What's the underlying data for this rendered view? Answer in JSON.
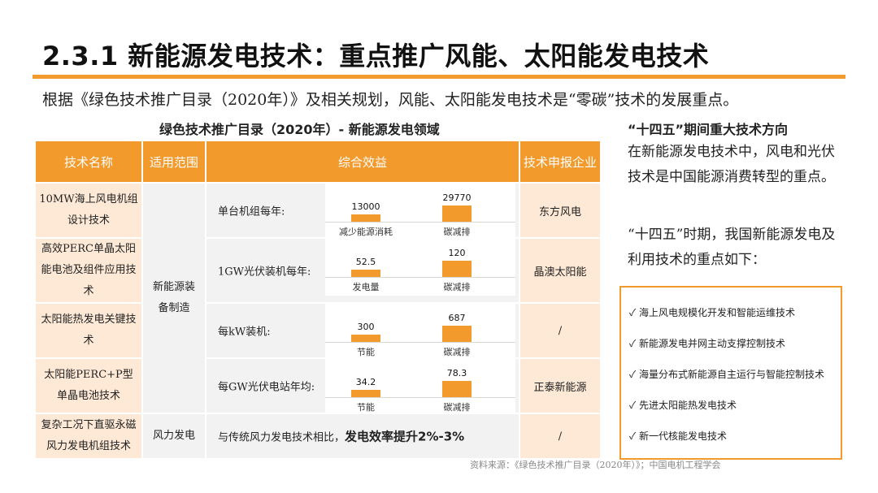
{
  "title": "2.3.1 新能源发电技术：重点推广风能、太阳能发电技术",
  "intro": "根据《绿色技术推广目录（2020年）》及相关规划，风能、太阳能发电技术是“零碳”技术的发展重点。",
  "table": {
    "caption": "绿色技术推广目录（2020年）- 新能源发电领域",
    "headers": [
      "技术名称",
      "适用范围",
      "综合效益",
      "技术申报企业"
    ],
    "scope_equipment": "新能源装备制造",
    "rows": [
      {
        "name": "10MW海上风电机组设计技术",
        "label": "单台机组每年:",
        "chart": {
          "categories": [
            "减少能源消耗",
            "碳减排"
          ],
          "values": [
            13000,
            29770
          ],
          "labels": [
            "13000",
            "29770"
          ]
        },
        "company": "东方风电"
      },
      {
        "name": "高效PERC单晶太阳能电池及组件应用技术",
        "label": "1GW光伏装机每年:",
        "chart": {
          "categories": [
            "发电量",
            "碳减排"
          ],
          "values": [
            52.5,
            120
          ],
          "labels": [
            "52.5",
            "120"
          ]
        },
        "company": "晶澳太阳能"
      },
      {
        "name": "太阳能热发电关键技术",
        "label": "每kW装机:",
        "chart": {
          "categories": [
            "节能",
            "碳减排"
          ],
          "values": [
            300,
            687
          ],
          "labels": [
            "300",
            "687"
          ]
        },
        "company": "/"
      },
      {
        "name": "太阳能PERC+P型单晶电池技术",
        "label": "每GW光伏电站年均:",
        "chart": {
          "categories": [
            "节能",
            "碳减排"
          ],
          "values": [
            34.2,
            78.3
          ],
          "labels": [
            "34.2",
            "78.3"
          ]
        },
        "company": "正泰新能源"
      }
    ],
    "last_row": {
      "name": "复杂工况下直驱永磁风力发电机组技术",
      "scope": "风力发电",
      "text": "与传统风力发电技术相比，",
      "bold": "发电效率提升2%-3%",
      "company": "/"
    }
  },
  "right": {
    "heading": "“十四五”期间重大技术方向",
    "p1": "在新能源发电技术中，风电和光伏技术是中国能源消费转型的重点。",
    "p2": "“十四五”时期，我国新能源发电及利用技术的重点如下：",
    "items": [
      "✓ 海上风电规模化开发和智能运维技术",
      "✓ 新能源发电并网主动支撑控制技术",
      "✓ 海量分布式新能源自主运行与智能控制技术",
      "✓ 先进太阳能热发电技术",
      "✓ 新一代核能发电技术"
    ]
  },
  "source": "资料来源：《绿色技术推广目录（2020年）》；中国电机工程学会",
  "colors": {
    "accent": "#f39a2c",
    "name_cell": "#fde9d5",
    "cell": "#f2f2f2"
  }
}
